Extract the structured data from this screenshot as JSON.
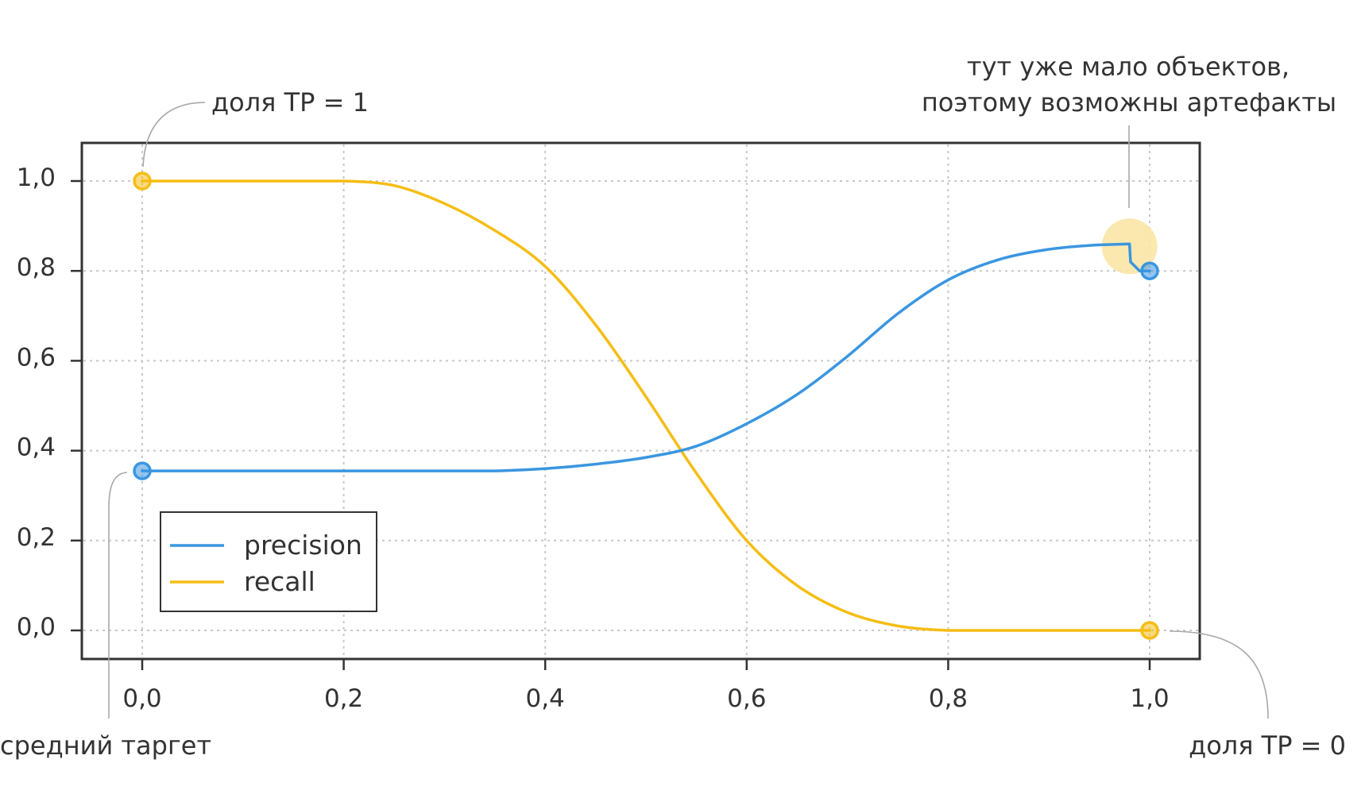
{
  "chart_data": {
    "type": "line",
    "title": "",
    "xlabel": "",
    "ylabel": "",
    "xlim": [
      -0.06,
      1.05
    ],
    "ylim": [
      -0.06,
      1.09
    ],
    "x_ticks": [
      0.0,
      0.2,
      0.4,
      0.6,
      0.8,
      1.0
    ],
    "x_tick_labels": [
      "0,0",
      "0,2",
      "0,4",
      "0,6",
      "0,8",
      "1,0"
    ],
    "y_ticks": [
      0.0,
      0.2,
      0.4,
      0.6,
      0.8,
      1.0
    ],
    "y_tick_labels": [
      "0,0",
      "0,2",
      "0,4",
      "0,6",
      "0,8",
      "1,0"
    ],
    "grid": true,
    "legend_position": "bottom-left",
    "series": [
      {
        "name": "precision",
        "color": "#3a96e0",
        "x": [
          0.0,
          0.05,
          0.1,
          0.15,
          0.2,
          0.25,
          0.3,
          0.35,
          0.4,
          0.45,
          0.5,
          0.55,
          0.6,
          0.65,
          0.7,
          0.75,
          0.8,
          0.85,
          0.9,
          0.95,
          0.98,
          0.981,
          0.99,
          1.0
        ],
        "y": [
          0.355,
          0.355,
          0.355,
          0.355,
          0.355,
          0.355,
          0.355,
          0.355,
          0.36,
          0.37,
          0.385,
          0.41,
          0.46,
          0.525,
          0.61,
          0.705,
          0.78,
          0.825,
          0.848,
          0.858,
          0.86,
          0.82,
          0.8,
          0.8
        ],
        "start_marker": true,
        "end_marker": true
      },
      {
        "name": "recall",
        "color": "#f5bd14",
        "x": [
          0.0,
          0.05,
          0.1,
          0.15,
          0.2,
          0.25,
          0.3,
          0.35,
          0.4,
          0.45,
          0.5,
          0.55,
          0.6,
          0.65,
          0.7,
          0.75,
          0.8,
          0.85,
          0.9,
          0.95,
          1.0
        ],
        "y": [
          1.0,
          1.0,
          1.0,
          1.0,
          1.0,
          0.99,
          0.95,
          0.89,
          0.81,
          0.68,
          0.52,
          0.35,
          0.2,
          0.1,
          0.04,
          0.01,
          0.0,
          0.0,
          0.0,
          0.0,
          0.0
        ],
        "start_marker": true,
        "end_marker": true
      }
    ],
    "annotations": [
      {
        "id": "tp1",
        "text": "доля TP = 1"
      },
      {
        "id": "artifacts",
        "lines": [
          "тут уже мало объектов,",
          "поэтому возможны артефакты"
        ]
      },
      {
        "id": "mean_target",
        "text": "средний таргет"
      },
      {
        "id": "tp0",
        "text": "доля TP = 0"
      }
    ],
    "highlight_color": "#fbe6a6",
    "axis_color": "#333333"
  }
}
